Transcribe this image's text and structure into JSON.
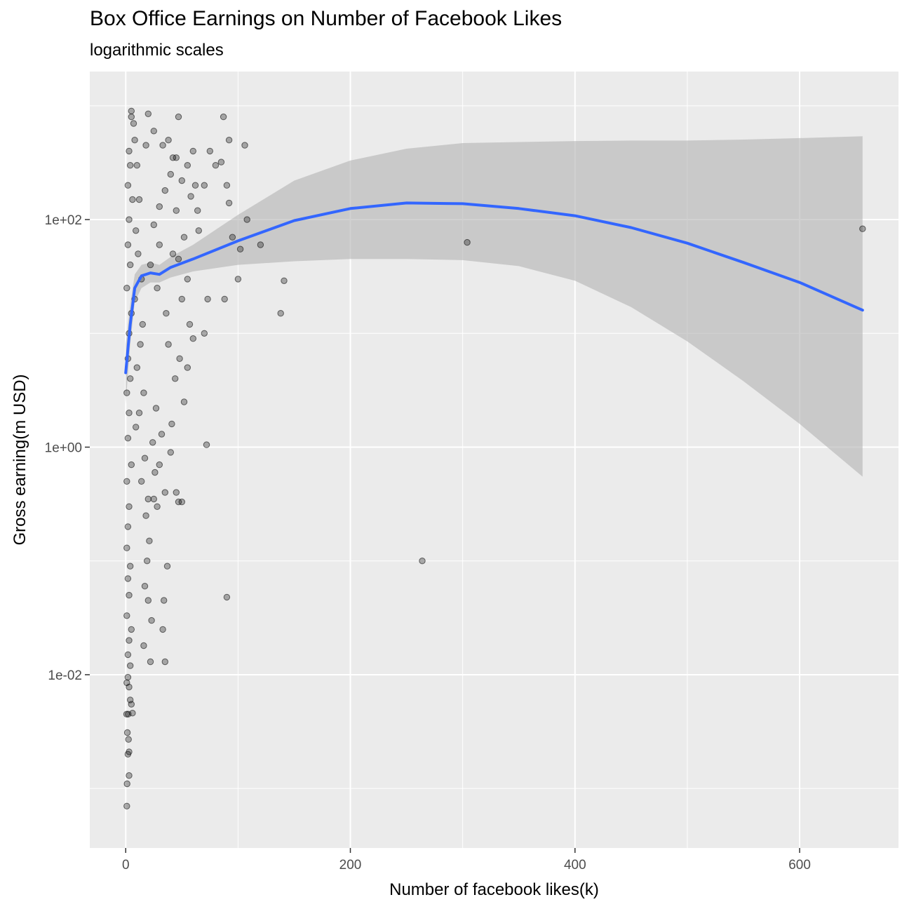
{
  "chart_data": {
    "type": "scatter",
    "title": "Box Office Earnings on Number of Facebook Likes",
    "subtitle": "logarithmic scales",
    "xlabel": "Number of facebook likes(k)",
    "ylabel": "Gross earning(m USD)",
    "x_scale": "linear",
    "y_scale": "log10",
    "xlim": [
      -32,
      688
    ],
    "ylim": [
      0.0003,
      2000
    ],
    "x_ticks": [
      0,
      200,
      400,
      600
    ],
    "x_tick_labels": [
      "0",
      "200",
      "400",
      "600"
    ],
    "y_ticks": [
      0.01,
      1,
      100
    ],
    "y_tick_labels": [
      "1e-02",
      "1e+00",
      "1e+02"
    ],
    "grid": true,
    "legend": "none",
    "colors": {
      "panel_background": "#ebebeb",
      "grid_line": "#ffffff",
      "points": "#000000",
      "smooth_line": "#3366ff",
      "confidence_band": "#b3b3b3"
    },
    "series": [
      {
        "kind": "points",
        "points": [
          [
            1,
            0.0007
          ],
          [
            1.2,
            0.0011
          ],
          [
            3,
            0.0013
          ],
          [
            2,
            0.002
          ],
          [
            2.5,
            0.0027
          ],
          [
            3,
            0.0021
          ],
          [
            1.5,
            0.0031
          ],
          [
            2.2,
            0.0045
          ],
          [
            4,
            0.006
          ],
          [
            0.8,
            0.0045
          ],
          [
            6,
            0.0046
          ],
          [
            5,
            0.0055
          ],
          [
            3,
            0.0078
          ],
          [
            2,
            0.0095
          ],
          [
            1,
            0.0085
          ],
          [
            4,
            0.012
          ],
          [
            2,
            0.015
          ],
          [
            3,
            0.02
          ],
          [
            5,
            0.025
          ],
          [
            1,
            0.033
          ],
          [
            3,
            0.05
          ],
          [
            2,
            0.07
          ],
          [
            4,
            0.09
          ],
          [
            1,
            0.13
          ],
          [
            2,
            0.2
          ],
          [
            3,
            0.3
          ],
          [
            1,
            0.5
          ],
          [
            5,
            0.7
          ],
          [
            2,
            1.2
          ],
          [
            3,
            2
          ],
          [
            1,
            3
          ],
          [
            4,
            4
          ],
          [
            2,
            6
          ],
          [
            3,
            10
          ],
          [
            5,
            15
          ],
          [
            1,
            25
          ],
          [
            4,
            40
          ],
          [
            2,
            60
          ],
          [
            3,
            100
          ],
          [
            6,
            150
          ],
          [
            2,
            200
          ],
          [
            4,
            300
          ],
          [
            3,
            400
          ],
          [
            7,
            700
          ],
          [
            5,
            800
          ],
          [
            10,
            300
          ],
          [
            12,
            150
          ],
          [
            9,
            80
          ],
          [
            11,
            50
          ],
          [
            14,
            30
          ],
          [
            8,
            20
          ],
          [
            15,
            12
          ],
          [
            13,
            8
          ],
          [
            10,
            5
          ],
          [
            16,
            3
          ],
          [
            12,
            2
          ],
          [
            9,
            1.5
          ],
          [
            17,
            0.8
          ],
          [
            14,
            0.5
          ],
          [
            20,
            0.35
          ],
          [
            18,
            0.25
          ],
          [
            21,
            0.15
          ],
          [
            19,
            0.1
          ],
          [
            17,
            0.06
          ],
          [
            20,
            0.045
          ],
          [
            23,
            0.03
          ],
          [
            16,
            0.018
          ],
          [
            22,
            0.013
          ],
          [
            25,
            0.35
          ],
          [
            28,
            0.3
          ],
          [
            26,
            0.6
          ],
          [
            30,
            0.7
          ],
          [
            24,
            1.1
          ],
          [
            32,
            1.3
          ],
          [
            27,
            2.2
          ],
          [
            35,
            0.4
          ],
          [
            34,
            0.045
          ],
          [
            33,
            0.025
          ],
          [
            35,
            0.013
          ],
          [
            37,
            0.09
          ],
          [
            47,
            0.33
          ],
          [
            50,
            0.33
          ],
          [
            45,
            0.4
          ],
          [
            40,
            0.9
          ],
          [
            41,
            1.6
          ],
          [
            44,
            4
          ],
          [
            52,
            2.5
          ],
          [
            48,
            6
          ],
          [
            55,
            5
          ],
          [
            60,
            9
          ],
          [
            57,
            12
          ],
          [
            50,
            20
          ],
          [
            55,
            30
          ],
          [
            47,
            45
          ],
          [
            52,
            70
          ],
          [
            45,
            120
          ],
          [
            58,
            160
          ],
          [
            50,
            220
          ],
          [
            45,
            350
          ],
          [
            60,
            400
          ],
          [
            55,
            300
          ],
          [
            40,
            250
          ],
          [
            35,
            180
          ],
          [
            30,
            130
          ],
          [
            25,
            90
          ],
          [
            30,
            60
          ],
          [
            22,
            40
          ],
          [
            28,
            25
          ],
          [
            36,
            15
          ],
          [
            38,
            8
          ],
          [
            42,
            50
          ],
          [
            65,
            80
          ],
          [
            70,
            200
          ],
          [
            75,
            400
          ],
          [
            80,
            300
          ],
          [
            85,
            320
          ],
          [
            92,
            140
          ],
          [
            95,
            70
          ],
          [
            102,
            55
          ],
          [
            108,
            100
          ],
          [
            120,
            60
          ],
          [
            100,
            30
          ],
          [
            88,
            20
          ],
          [
            73,
            20
          ],
          [
            70,
            10
          ],
          [
            72,
            1.05
          ],
          [
            90,
            0.048
          ],
          [
            87,
            800
          ],
          [
            92,
            500
          ],
          [
            106,
            450
          ],
          [
            90,
            200
          ],
          [
            62,
            200
          ],
          [
            64,
            120
          ],
          [
            38,
            500
          ],
          [
            42,
            350
          ],
          [
            47,
            800
          ],
          [
            20,
            850
          ],
          [
            5,
            900
          ],
          [
            8,
            500
          ],
          [
            18,
            450
          ],
          [
            25,
            600
          ],
          [
            33,
            450
          ],
          [
            138,
            15
          ],
          [
            141,
            29
          ],
          [
            264,
            0.1
          ],
          [
            304,
            63
          ],
          [
            656,
            83
          ]
        ]
      },
      {
        "kind": "smooth",
        "x": [
          0,
          4,
          8,
          14,
          22,
          30,
          40,
          60,
          100,
          150,
          200,
          250,
          300,
          350,
          400,
          450,
          500,
          550,
          600,
          656
        ],
        "y": [
          4.5,
          12,
          25,
          32,
          34,
          33,
          38,
          45,
          65,
          98,
          125,
          140,
          138,
          125,
          108,
          85,
          62,
          42,
          28,
          16
        ],
        "ci_lower": [
          2.4,
          8,
          19,
          25,
          28,
          28,
          31,
          35,
          40,
          43,
          45,
          45,
          44,
          39,
          29,
          17,
          8.5,
          3.8,
          1.6,
          0.55
        ],
        "ci_upper": [
          8,
          18,
          33,
          40,
          42,
          40,
          47,
          60,
          110,
          220,
          330,
          420,
          470,
          480,
          490,
          495,
          495,
          505,
          520,
          540
        ]
      }
    ]
  }
}
